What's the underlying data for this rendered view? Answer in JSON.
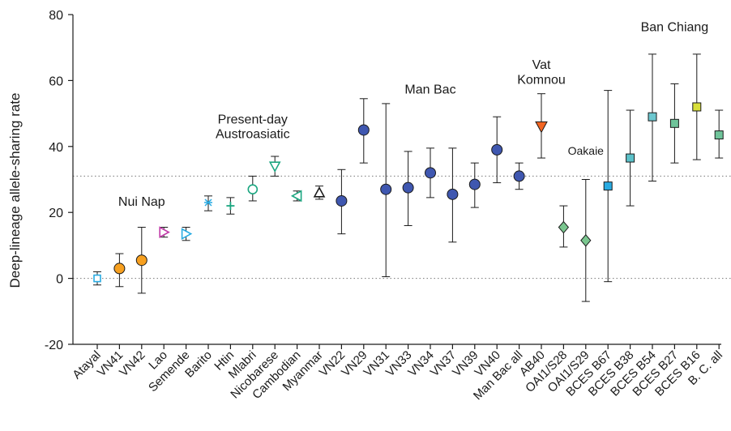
{
  "chart_data": {
    "type": "scatter",
    "ylabel": "Deep-lineage allele-sharing rate",
    "xlabel": "",
    "ylim": [
      -20,
      80
    ],
    "yticks": [
      -20,
      0,
      20,
      40,
      60,
      80
    ],
    "reference_lines": [
      0,
      31
    ],
    "annotations": [
      {
        "text": "Nui Nap",
        "at_category": "VN42",
        "y": 22
      },
      {
        "text": "Present-day",
        "at_category": "Mlabri",
        "y": 47
      },
      {
        "text": "Austroasiatic",
        "at_category": "Mlabri",
        "y": 42.5
      },
      {
        "text": "Man Bac",
        "at_category": "VN34",
        "y": 56
      },
      {
        "text": "Vat",
        "at_category": "AB40",
        "y": 63.5
      },
      {
        "text": "Komnou",
        "at_category": "AB40",
        "y": 59
      },
      {
        "text": "Oakaie",
        "at_category": "OAI1/S29",
        "y": 37.5
      },
      {
        "text": "Ban Chiang",
        "at_category": "BCES B27",
        "y": 75
      }
    ],
    "categories": [
      "Atayal",
      "VN41",
      "VN42",
      "Lao",
      "Semende",
      "Barito",
      "Htin",
      "Mlabri",
      "Nicobarese",
      "Cambodian",
      "Myanmar",
      "VN22",
      "VN29",
      "VN31",
      "VN33",
      "VN34",
      "VN37",
      "VN39",
      "VN40",
      "Man Bac all",
      "AB40",
      "OAI1/S28",
      "OAI1/S29",
      "BCES B67",
      "BCES B38",
      "BCES B54",
      "BCES B27",
      "BCES B16",
      "B. C. all"
    ],
    "points": [
      {
        "category": "Atayal",
        "value": 0,
        "low": -2,
        "high": 2,
        "marker": "square-open",
        "color": "#29abe2"
      },
      {
        "category": "VN41",
        "value": 3,
        "low": -2.5,
        "high": 7.5,
        "marker": "circle",
        "color": "#f7a020"
      },
      {
        "category": "VN42",
        "value": 5.5,
        "low": -4.5,
        "high": 15.5,
        "marker": "circle",
        "color": "#f7a020"
      },
      {
        "category": "Lao",
        "value": 14,
        "low": 12.5,
        "high": 15.5,
        "marker": "triangle-right-open",
        "color": "#c03aa8"
      },
      {
        "category": "Semende",
        "value": 13.5,
        "low": 11.5,
        "high": 15.5,
        "marker": "triangle-right-open",
        "color": "#29abe2"
      },
      {
        "category": "Barito",
        "value": 23,
        "low": 20.5,
        "high": 25,
        "marker": "star",
        "color": "#29abe2"
      },
      {
        "category": "Htin",
        "value": 22,
        "low": 19.5,
        "high": 24.5,
        "marker": "plus",
        "color": "#1aa680"
      },
      {
        "category": "Mlabri",
        "value": 27,
        "low": 23.5,
        "high": 31,
        "marker": "circle-open",
        "color": "#1aa680"
      },
      {
        "category": "Nicobarese",
        "value": 34,
        "low": 31,
        "high": 37,
        "marker": "triangle-down-open",
        "color": "#1aa680"
      },
      {
        "category": "Cambodian",
        "value": 25,
        "low": 23.5,
        "high": 26.5,
        "marker": "triangle-left-open",
        "color": "#1aa680"
      },
      {
        "category": "Myanmar",
        "value": 26,
        "low": 24,
        "high": 28,
        "marker": "triangle-up-open",
        "color": "#1a1a1a"
      },
      {
        "category": "VN22",
        "value": 23.5,
        "low": 13.5,
        "high": 33,
        "marker": "circle",
        "color": "#3f57b0"
      },
      {
        "category": "VN29",
        "value": 45,
        "low": 35,
        "high": 54.5,
        "marker": "circle",
        "color": "#3f57b0"
      },
      {
        "category": "VN31",
        "value": 27,
        "low": 0.5,
        "high": 53,
        "marker": "circle",
        "color": "#3f57b0"
      },
      {
        "category": "VN33",
        "value": 27.5,
        "low": 16,
        "high": 38.5,
        "marker": "circle",
        "color": "#3f57b0"
      },
      {
        "category": "VN34",
        "value": 32,
        "low": 24.5,
        "high": 39.5,
        "marker": "circle",
        "color": "#3f57b0"
      },
      {
        "category": "VN37",
        "value": 25.5,
        "low": 11,
        "high": 39.5,
        "marker": "circle",
        "color": "#3f57b0"
      },
      {
        "category": "VN39",
        "value": 28.5,
        "low": 21.5,
        "high": 35,
        "marker": "circle",
        "color": "#3f57b0"
      },
      {
        "category": "VN40",
        "value": 39,
        "low": 29,
        "high": 49,
        "marker": "circle",
        "color": "#3f57b0"
      },
      {
        "category": "Man Bac all",
        "value": 31,
        "low": 27,
        "high": 35,
        "marker": "circle",
        "color": "#3f57b0"
      },
      {
        "category": "AB40",
        "value": 46,
        "low": 36.5,
        "high": 56,
        "marker": "triangle-down",
        "color": "#f26522"
      },
      {
        "category": "OAI1/S28",
        "value": 15.5,
        "low": 9.5,
        "high": 22,
        "marker": "diamond",
        "color": "#7ac68f"
      },
      {
        "category": "OAI1/S29",
        "value": 11.5,
        "low": -7,
        "high": 30,
        "marker": "diamond",
        "color": "#7ac68f"
      },
      {
        "category": "BCES B67",
        "value": 28,
        "low": -1,
        "high": 57,
        "marker": "square",
        "color": "#29abe2"
      },
      {
        "category": "BCES B38",
        "value": 36.5,
        "low": 22,
        "high": 51,
        "marker": "square",
        "color": "#5bc1c9"
      },
      {
        "category": "BCES B54",
        "value": 49,
        "low": 29.5,
        "high": 68,
        "marker": "square",
        "color": "#6cc7cf"
      },
      {
        "category": "BCES B27",
        "value": 47,
        "low": 35,
        "high": 59,
        "marker": "square",
        "color": "#6fc49a"
      },
      {
        "category": "BCES B16",
        "value": 52,
        "low": 36,
        "high": 68,
        "marker": "square",
        "color": "#d8df3a"
      },
      {
        "category": "B. C. all",
        "value": 43.5,
        "low": 36.5,
        "high": 51,
        "marker": "square",
        "color": "#6fc49a"
      }
    ]
  }
}
